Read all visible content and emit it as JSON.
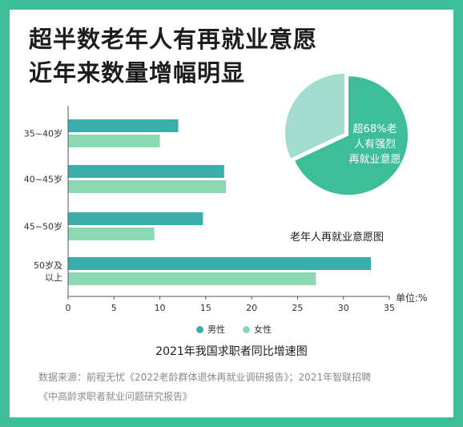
{
  "headline": {
    "line1": "超半数老年人有再就业意愿",
    "line2": "近年来数量增幅明显"
  },
  "colors": {
    "male": "#3aaeaa",
    "female": "#8cd8b3",
    "pie_main": "#3ebd9b",
    "pie_rest": "#a3ddd0",
    "frame": "#3ebd9b"
  },
  "chart_data": [
    {
      "type": "bar",
      "orientation": "horizontal",
      "title": "2021年我国求职者同比增速图",
      "unit_label": "单位:%",
      "categories": [
        "35~40岁",
        "40~45岁",
        "45~50岁",
        "50岁及以上"
      ],
      "category_lines": [
        [
          "35~40岁"
        ],
        [
          "40~45岁"
        ],
        [
          "45~50岁"
        ],
        [
          "50岁及",
          "以上"
        ]
      ],
      "series": [
        {
          "name": "男性",
          "values": [
            12,
            17,
            14.7,
            33
          ]
        },
        {
          "name": "女性",
          "values": [
            10,
            17.2,
            9.4,
            27
          ]
        }
      ],
      "xlim": [
        0,
        35
      ],
      "xticks": [
        0,
        5,
        10,
        15,
        20,
        25,
        30,
        35
      ],
      "grid": false,
      "legend": "bottom"
    },
    {
      "type": "pie",
      "title": "老年人再就业意愿图",
      "slices": [
        {
          "label": "超68%老人有强烈再就业意愿",
          "value": 68
        },
        {
          "label": "",
          "value": 32
        }
      ],
      "annotation_lines": [
        "超68%老",
        "人有强烈",
        "再就业意愿"
      ]
    }
  ],
  "source": {
    "line1": "数据来源：前程无忧《2022老龄群体退休再就业调研报告》；2021年智联招聘",
    "line2": "《中高龄求职者就业问题研究报告》"
  }
}
